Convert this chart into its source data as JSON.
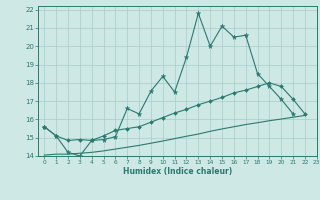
{
  "xlabel": "Humidex (Indice chaleur)",
  "background_color": "#cde8e5",
  "grid_color": "#a8ceca",
  "line_color": "#2a7a6f",
  "xlim": [
    -0.5,
    23
  ],
  "ylim": [
    14,
    22.2
  ],
  "x_ticks": [
    0,
    1,
    2,
    3,
    4,
    5,
    6,
    7,
    8,
    9,
    10,
    11,
    12,
    13,
    14,
    15,
    16,
    17,
    18,
    19,
    20,
    21,
    22,
    23
  ],
  "y_ticks": [
    14,
    15,
    16,
    17,
    18,
    19,
    20,
    21,
    22
  ],
  "line1_x": [
    0,
    1,
    2,
    3,
    4,
    5,
    6,
    7,
    8,
    9,
    10,
    11,
    12,
    13,
    14,
    15,
    16,
    17,
    18,
    19,
    20,
    21
  ],
  "line1_y": [
    15.6,
    15.1,
    14.2,
    14.0,
    14.85,
    14.9,
    15.05,
    16.6,
    16.3,
    17.55,
    18.35,
    17.5,
    19.4,
    21.8,
    20.0,
    21.1,
    20.5,
    20.6,
    18.5,
    17.8,
    17.1,
    16.3
  ],
  "line2_x": [
    0,
    1,
    2,
    3,
    4,
    5,
    6,
    7,
    8,
    9,
    10,
    11,
    12,
    13,
    14,
    15,
    16,
    17,
    18,
    19,
    20,
    21,
    22
  ],
  "line2_y": [
    15.6,
    15.1,
    14.85,
    14.9,
    14.85,
    15.1,
    15.4,
    15.5,
    15.6,
    15.85,
    16.1,
    16.35,
    16.55,
    16.8,
    17.0,
    17.2,
    17.45,
    17.6,
    17.8,
    18.0,
    17.8,
    17.1,
    16.3
  ],
  "line3_x": [
    0,
    1,
    2,
    3,
    4,
    5,
    6,
    7,
    8,
    9,
    10,
    11,
    12,
    13,
    14,
    15,
    16,
    17,
    18,
    19,
    20,
    21,
    22
  ],
  "line3_y": [
    14.05,
    14.1,
    14.1,
    14.15,
    14.2,
    14.28,
    14.38,
    14.48,
    14.58,
    14.7,
    14.82,
    14.95,
    15.08,
    15.2,
    15.35,
    15.48,
    15.6,
    15.72,
    15.82,
    15.93,
    16.02,
    16.12,
    16.22
  ]
}
